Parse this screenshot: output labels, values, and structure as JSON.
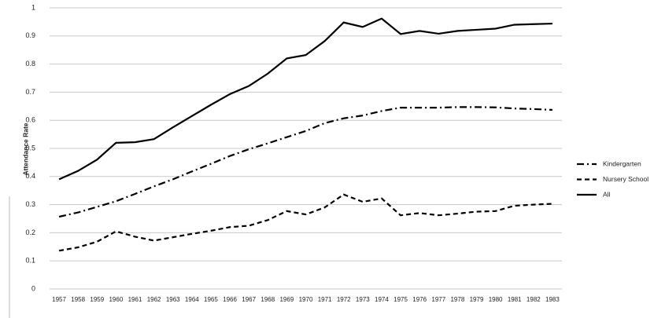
{
  "chart_data": {
    "type": "line",
    "y_label": "Attendance Rate",
    "categories": [
      1957,
      1958,
      1959,
      1960,
      1961,
      1962,
      1963,
      1964,
      1965,
      1966,
      1967,
      1968,
      1969,
      1970,
      1971,
      1972,
      1973,
      1974,
      1975,
      1976,
      1977,
      1978,
      1979,
      1980,
      1981,
      1982,
      1983
    ],
    "series": [
      {
        "name": "Kindergarten",
        "color": "#000000",
        "dash": "9 4 2 4",
        "values": [
          0.257,
          0.272,
          0.292,
          0.312,
          0.338,
          0.365,
          0.39,
          0.418,
          0.445,
          0.473,
          0.497,
          0.518,
          0.54,
          0.562,
          0.59,
          0.607,
          0.617,
          0.633,
          0.645,
          0.645,
          0.645,
          0.647,
          0.647,
          0.646,
          0.642,
          0.64,
          0.637
        ]
      },
      {
        "name": "Nursery School",
        "color": "#000000",
        "dash": "6 4",
        "values": [
          0.136,
          0.148,
          0.168,
          0.205,
          0.186,
          0.172,
          0.184,
          0.196,
          0.207,
          0.22,
          0.225,
          0.245,
          0.277,
          0.265,
          0.29,
          0.336,
          0.31,
          0.322,
          0.262,
          0.27,
          0.262,
          0.268,
          0.275,
          0.277,
          0.296,
          0.3,
          0.303
        ]
      },
      {
        "name": "All",
        "color": "#000000",
        "dash": "none",
        "values": [
          0.39,
          0.42,
          0.46,
          0.52,
          0.522,
          0.533,
          0.575,
          0.615,
          0.655,
          0.693,
          0.722,
          0.766,
          0.82,
          0.832,
          0.882,
          0.948,
          0.932,
          0.962,
          0.907,
          0.918,
          0.908,
          0.918,
          0.922,
          0.926,
          0.94,
          0.942,
          0.944
        ]
      }
    ],
    "ylim": [
      0,
      1
    ],
    "yticks": [
      0,
      0.1,
      0.2,
      0.3,
      0.4,
      0.5,
      0.6,
      0.7,
      0.8,
      0.9,
      1
    ],
    "grid": true,
    "legend": "right"
  }
}
